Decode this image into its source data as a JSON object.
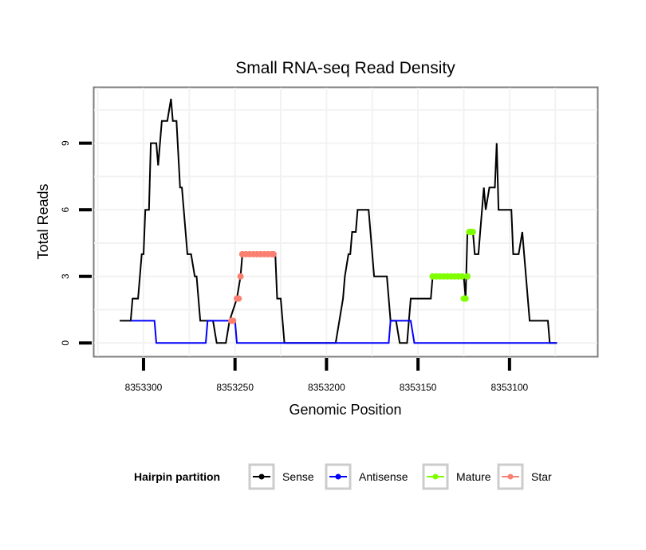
{
  "chart_data": {
    "type": "line",
    "title": "Small RNA-seq Read Density",
    "xlabel": "Genomic Position",
    "ylabel": "Total Reads",
    "xlim": [
      8353327,
      8353052
    ],
    "x_reversed": true,
    "ylim": [
      -0.6,
      11.5
    ],
    "xticks": [
      8353300,
      8353250,
      8353200,
      8353150,
      8353100
    ],
    "xtick_labels": [
      "8353300",
      "8353250",
      "8353200",
      "8353150",
      "8353100"
    ],
    "yticks": [
      0,
      3,
      6,
      9
    ],
    "ytick_labels": [
      "0",
      "3",
      "6",
      "9"
    ],
    "grid": true,
    "legend": {
      "title": "Hairpin partition",
      "position": "bottom",
      "entries": [
        {
          "name": "Sense",
          "color": "#000000"
        },
        {
          "name": "Antisense",
          "color": "#0000ff"
        },
        {
          "name": "Mature",
          "color": "#7fff00"
        },
        {
          "name": "Star",
          "color": "#fa8072"
        }
      ]
    },
    "series": [
      {
        "name": "Sense",
        "color": "#000000",
        "kind": "line",
        "points": [
          [
            8353313,
            1
          ],
          [
            8353307,
            1
          ],
          [
            8353306,
            2
          ],
          [
            8353303,
            2
          ],
          [
            8353301,
            4
          ],
          [
            8353300,
            4
          ],
          [
            8353299,
            6
          ],
          [
            8353297,
            6
          ],
          [
            8353296,
            9
          ],
          [
            8353293,
            9
          ],
          [
            8353292,
            8
          ],
          [
            8353290,
            10
          ],
          [
            8353287,
            10
          ],
          [
            8353285,
            11
          ],
          [
            8353284,
            10
          ],
          [
            8353282,
            10
          ],
          [
            8353280,
            7
          ],
          [
            8353279,
            7
          ],
          [
            8353276,
            4
          ],
          [
            8353274,
            4
          ],
          [
            8353272,
            3
          ],
          [
            8353271,
            3
          ],
          [
            8353269,
            1
          ],
          [
            8353262,
            1
          ],
          [
            8353260,
            0
          ],
          [
            8353255,
            0
          ],
          [
            8353253,
            1
          ],
          [
            8353249,
            2
          ],
          [
            8353247,
            3
          ],
          [
            8353246,
            4
          ],
          [
            8353228,
            4
          ],
          [
            8353227,
            2
          ],
          [
            8353225,
            2
          ],
          [
            8353223,
            0
          ],
          [
            8353195,
            0
          ],
          [
            8353193,
            1
          ],
          [
            8353191,
            2
          ],
          [
            8353190,
            3
          ],
          [
            8353188,
            4
          ],
          [
            8353187,
            4
          ],
          [
            8353186,
            5
          ],
          [
            8353184,
            5
          ],
          [
            8353183,
            6
          ],
          [
            8353177,
            6
          ],
          [
            8353176,
            5
          ],
          [
            8353174,
            3
          ],
          [
            8353167,
            3
          ],
          [
            8353165,
            1
          ],
          [
            8353162,
            1
          ],
          [
            8353160,
            0
          ],
          [
            8353156,
            0
          ],
          [
            8353154,
            2
          ],
          [
            8353143,
            2
          ],
          [
            8353142,
            3
          ],
          [
            8353125,
            3
          ],
          [
            8353124,
            2
          ],
          [
            8353123,
            5
          ],
          [
            8353120,
            5
          ],
          [
            8353119,
            4
          ],
          [
            8353117,
            4
          ],
          [
            8353116,
            5
          ],
          [
            8353115,
            6
          ],
          [
            8353114,
            7
          ],
          [
            8353113,
            6
          ],
          [
            8353111,
            7
          ],
          [
            8353108,
            7
          ],
          [
            8353107,
            9
          ],
          [
            8353106,
            6
          ],
          [
            8353099,
            6
          ],
          [
            8353098,
            4
          ],
          [
            8353095,
            4
          ],
          [
            8353093,
            5
          ],
          [
            8353092,
            4
          ],
          [
            8353091,
            3
          ],
          [
            8353089,
            1
          ],
          [
            8353079,
            1
          ],
          [
            8353078,
            0
          ],
          [
            8353074,
            0
          ]
        ]
      },
      {
        "name": "Antisense",
        "color": "#0000ff",
        "kind": "line",
        "points": [
          [
            8353307,
            1
          ],
          [
            8353294,
            1
          ],
          [
            8353293,
            0
          ],
          [
            8353266,
            0
          ],
          [
            8353265,
            1
          ],
          [
            8353250,
            1
          ],
          [
            8353249,
            0
          ],
          [
            8353193,
            0
          ],
          [
            8353192,
            0
          ],
          [
            8353166,
            0
          ],
          [
            8353165,
            1
          ],
          [
            8353154,
            1
          ],
          [
            8353152,
            0
          ],
          [
            8353074,
            0
          ]
        ]
      },
      {
        "name": "Mature",
        "color": "#7fff00",
        "kind": "points",
        "points": [
          [
            8353142,
            3
          ],
          [
            8353140,
            3
          ],
          [
            8353138,
            3
          ],
          [
            8353136,
            3
          ],
          [
            8353134,
            3
          ],
          [
            8353132,
            3
          ],
          [
            8353130,
            3
          ],
          [
            8353128,
            3
          ],
          [
            8353126,
            3
          ],
          [
            8353125,
            2
          ],
          [
            8353124,
            2
          ],
          [
            8353123,
            3
          ],
          [
            8353122,
            5
          ],
          [
            8353121,
            5
          ],
          [
            8353120,
            5
          ]
        ]
      },
      {
        "name": "Star",
        "color": "#fa8072",
        "kind": "points",
        "points": [
          [
            8353252,
            1
          ],
          [
            8353251,
            1
          ],
          [
            8353249,
            2
          ],
          [
            8353248,
            2
          ],
          [
            8353247,
            3
          ],
          [
            8353246,
            4
          ],
          [
            8353244,
            4
          ],
          [
            8353242,
            4
          ],
          [
            8353240,
            4
          ],
          [
            8353238,
            4
          ],
          [
            8353236,
            4
          ],
          [
            8353234,
            4
          ],
          [
            8353232,
            4
          ],
          [
            8353230,
            4
          ],
          [
            8353229,
            4
          ]
        ]
      }
    ]
  }
}
